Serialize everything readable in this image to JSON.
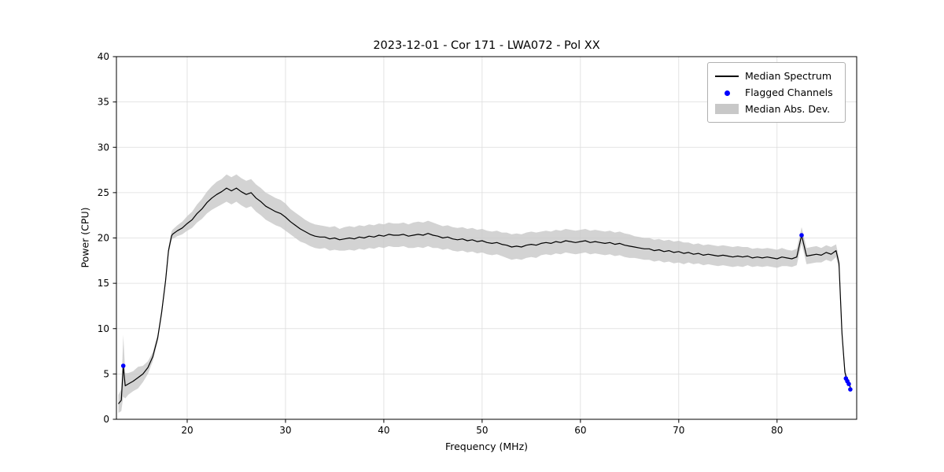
{
  "chart_data": {
    "type": "line",
    "title": "2023-12-01 - Cor 171 - LWA072 - Pol XX",
    "xlabel": "Frequency (MHz)",
    "ylabel": "Power (CPU)",
    "xlim": [
      12.8,
      88.1
    ],
    "ylim": [
      0,
      40
    ],
    "x_ticks": [
      20,
      30,
      40,
      50,
      60,
      70,
      80
    ],
    "y_ticks": [
      0,
      5,
      10,
      15,
      20,
      25,
      30,
      35,
      40
    ],
    "grid": true,
    "legend_position": "upper right",
    "legend": [
      "Median Spectrum",
      "Flagged Channels",
      "Median Abs. Dev."
    ],
    "colors": {
      "line": "#000000",
      "flagged": "#0000ff",
      "band": "#c8c8c8",
      "grid": "#dcdcdc",
      "legend_border": "#b0b0b0"
    },
    "x": [
      13.0,
      13.3,
      13.5,
      13.7,
      14.0,
      14.5,
      15.0,
      15.5,
      16.0,
      16.5,
      17.0,
      17.4,
      17.8,
      18.1,
      18.4,
      18.5,
      19.0,
      19.5,
      20.0,
      20.5,
      21.0,
      21.5,
      22.0,
      22.5,
      23.0,
      23.5,
      24.0,
      24.5,
      25.0,
      25.5,
      26.0,
      26.5,
      27.0,
      27.5,
      28.0,
      28.5,
      29.0,
      29.5,
      30.0,
      30.5,
      31.0,
      31.5,
      32.0,
      32.5,
      33.0,
      33.5,
      34.0,
      34.5,
      35.0,
      35.5,
      36.0,
      36.5,
      37.0,
      37.5,
      38.0,
      38.5,
      39.0,
      39.5,
      40.0,
      40.5,
      41.0,
      41.5,
      42.0,
      42.5,
      43.0,
      43.5,
      44.0,
      44.5,
      45.0,
      45.5,
      46.0,
      46.5,
      47.0,
      47.5,
      48.0,
      48.5,
      49.0,
      49.5,
      50.0,
      50.5,
      51.0,
      51.5,
      52.0,
      52.5,
      53.0,
      53.5,
      54.0,
      54.5,
      55.0,
      55.5,
      56.0,
      56.5,
      57.0,
      57.5,
      58.0,
      58.5,
      59.0,
      59.5,
      60.0,
      60.5,
      61.0,
      61.5,
      62.0,
      62.5,
      63.0,
      63.5,
      64.0,
      64.5,
      65.0,
      65.5,
      66.0,
      66.5,
      67.0,
      67.5,
      68.0,
      68.5,
      69.0,
      69.5,
      70.0,
      70.5,
      71.0,
      71.5,
      72.0,
      72.5,
      73.0,
      73.5,
      74.0,
      74.5,
      75.0,
      75.5,
      76.0,
      76.5,
      77.0,
      77.5,
      78.0,
      78.5,
      79.0,
      79.5,
      80.0,
      80.5,
      81.0,
      81.5,
      82.0,
      82.5,
      83.0,
      83.5,
      84.0,
      84.5,
      85.0,
      85.5,
      86.0,
      86.3,
      86.6,
      86.9,
      87.1,
      87.3,
      87.5
    ],
    "median": [
      1.7,
      2.1,
      5.9,
      3.7,
      3.9,
      4.2,
      4.6,
      5.0,
      5.7,
      6.9,
      9.0,
      11.8,
      15.3,
      18.6,
      20.2,
      20.4,
      20.8,
      21.1,
      21.6,
      22.0,
      22.7,
      23.2,
      23.9,
      24.4,
      24.8,
      25.1,
      25.5,
      25.2,
      25.5,
      25.1,
      24.8,
      25.0,
      24.4,
      24.0,
      23.5,
      23.2,
      22.9,
      22.7,
      22.3,
      21.8,
      21.4,
      21.0,
      20.7,
      20.4,
      20.2,
      20.1,
      20.1,
      19.9,
      20.0,
      19.8,
      19.9,
      20.0,
      19.9,
      20.1,
      20.0,
      20.2,
      20.1,
      20.3,
      20.2,
      20.4,
      20.3,
      20.3,
      20.4,
      20.2,
      20.3,
      20.4,
      20.3,
      20.5,
      20.3,
      20.2,
      20.0,
      20.1,
      19.9,
      19.8,
      19.9,
      19.7,
      19.8,
      19.6,
      19.7,
      19.5,
      19.4,
      19.5,
      19.3,
      19.2,
      19.0,
      19.1,
      19.0,
      19.2,
      19.3,
      19.2,
      19.4,
      19.5,
      19.4,
      19.6,
      19.5,
      19.7,
      19.6,
      19.5,
      19.6,
      19.7,
      19.5,
      19.6,
      19.5,
      19.4,
      19.5,
      19.3,
      19.4,
      19.2,
      19.1,
      19.0,
      18.9,
      18.8,
      18.8,
      18.6,
      18.7,
      18.5,
      18.6,
      18.4,
      18.5,
      18.3,
      18.4,
      18.2,
      18.3,
      18.1,
      18.2,
      18.1,
      18.0,
      18.1,
      18.0,
      17.9,
      18.0,
      17.9,
      18.0,
      17.8,
      17.9,
      17.8,
      17.9,
      17.8,
      17.7,
      17.9,
      17.8,
      17.7,
      17.9,
      20.3,
      18.0,
      18.1,
      18.2,
      18.1,
      18.4,
      18.2,
      18.6,
      17.2,
      9.5,
      5.2,
      4.4,
      4.0,
      3.4
    ],
    "mad": [
      1.0,
      1.2,
      3.4,
      1.4,
      1.2,
      1.1,
      1.2,
      0.9,
      0.7,
      0.5,
      0.4,
      0.4,
      0.4,
      0.4,
      0.5,
      0.5,
      0.6,
      0.7,
      0.8,
      0.9,
      1.0,
      1.1,
      1.2,
      1.3,
      1.4,
      1.4,
      1.5,
      1.5,
      1.5,
      1.5,
      1.5,
      1.5,
      1.5,
      1.5,
      1.5,
      1.5,
      1.5,
      1.5,
      1.5,
      1.4,
      1.4,
      1.4,
      1.3,
      1.3,
      1.3,
      1.3,
      1.2,
      1.3,
      1.3,
      1.2,
      1.3,
      1.3,
      1.3,
      1.3,
      1.3,
      1.3,
      1.3,
      1.3,
      1.3,
      1.3,
      1.3,
      1.3,
      1.3,
      1.3,
      1.4,
      1.4,
      1.4,
      1.4,
      1.4,
      1.3,
      1.3,
      1.3,
      1.3,
      1.3,
      1.3,
      1.3,
      1.3,
      1.3,
      1.3,
      1.3,
      1.3,
      1.3,
      1.3,
      1.4,
      1.4,
      1.4,
      1.4,
      1.4,
      1.4,
      1.4,
      1.3,
      1.3,
      1.3,
      1.3,
      1.3,
      1.3,
      1.3,
      1.3,
      1.3,
      1.3,
      1.3,
      1.3,
      1.3,
      1.3,
      1.3,
      1.3,
      1.3,
      1.3,
      1.3,
      1.2,
      1.2,
      1.2,
      1.2,
      1.2,
      1.2,
      1.2,
      1.2,
      1.2,
      1.2,
      1.2,
      1.1,
      1.1,
      1.1,
      1.1,
      1.1,
      1.1,
      1.1,
      1.1,
      1.1,
      1.1,
      1.1,
      1.1,
      1.0,
      1.0,
      1.0,
      1.0,
      1.0,
      1.0,
      1.0,
      1.0,
      0.9,
      0.9,
      0.9,
      0.9,
      0.9,
      0.9,
      0.9,
      0.8,
      0.8,
      0.8,
      0.7,
      0.6,
      0.5,
      0.5,
      0.4,
      0.4,
      0.4
    ],
    "flagged": {
      "x": [
        13.5,
        82.5,
        87.0,
        87.15,
        87.3,
        87.45
      ],
      "y": [
        5.9,
        20.3,
        4.5,
        4.2,
        3.9,
        3.3
      ]
    }
  }
}
